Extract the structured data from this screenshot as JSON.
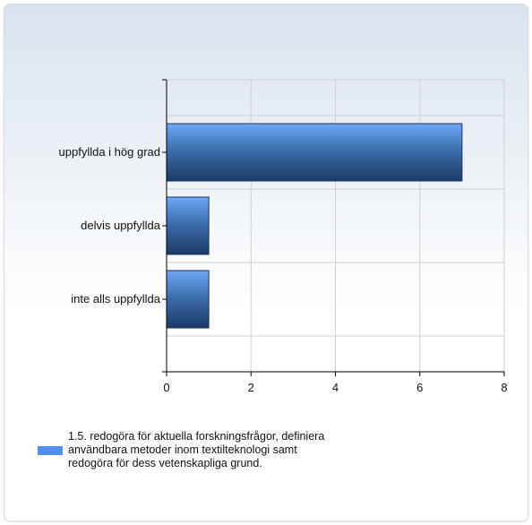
{
  "chart_data": {
    "type": "bar",
    "orientation": "horizontal",
    "categories": [
      "uppfyllda i hög grad",
      "delvis uppfyllda",
      "inte alls uppfyllda"
    ],
    "series": [
      {
        "name": "1.5. redogöra för aktuella forskningsfrågor, definiera användbara metoder inom textilteknologi samt redogöra för dess vetenskapliga grund.",
        "values": [
          7,
          1,
          1
        ],
        "color": "#4f8ff2"
      }
    ],
    "xticks": [
      "0",
      "2",
      "4",
      "6",
      "8"
    ],
    "xlim": [
      0,
      8
    ],
    "grid": true,
    "legend_position": "bottom-left"
  }
}
